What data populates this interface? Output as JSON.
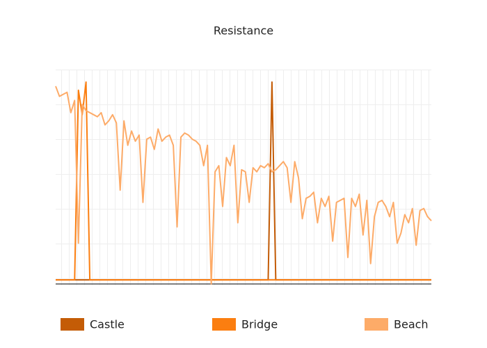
{
  "chart_data": {
    "type": "line",
    "title": "Resistance",
    "ylim": [
      0,
      100
    ],
    "series": [
      {
        "name": "Castle",
        "color": "#c45c06",
        "values": [
          2,
          2,
          2,
          2,
          2,
          2,
          2,
          2,
          2,
          2,
          2,
          2,
          2,
          2,
          2,
          2,
          2,
          2,
          2,
          2,
          2,
          2,
          2,
          2,
          2,
          2,
          2,
          2,
          2,
          2,
          2,
          2,
          2,
          2,
          2,
          2,
          2,
          2,
          2,
          2,
          2,
          2,
          2,
          2,
          2,
          2,
          2,
          2,
          2,
          2,
          2,
          2,
          2,
          2,
          2,
          2,
          2,
          99,
          2,
          2,
          2,
          2,
          2,
          2,
          2,
          2,
          2,
          2,
          2,
          2,
          2,
          2,
          2,
          2,
          2,
          2,
          2,
          2,
          2,
          2,
          2,
          2,
          2,
          2,
          2,
          2,
          2,
          2,
          2,
          2,
          2,
          2,
          2,
          2,
          2,
          2,
          2,
          2,
          2,
          2
        ]
      },
      {
        "name": "Bridge",
        "color": "#fb7e10",
        "values": [
          2,
          2,
          2,
          2,
          2,
          2,
          95,
          83,
          99,
          2,
          2,
          2,
          2,
          2,
          2,
          2,
          2,
          2,
          2,
          2,
          2,
          2,
          2,
          2,
          2,
          2,
          2,
          2,
          2,
          2,
          2,
          2,
          2,
          2,
          2,
          2,
          2,
          2,
          2,
          2,
          2,
          2,
          2,
          2,
          2,
          2,
          2,
          2,
          2,
          2,
          2,
          2,
          2,
          2,
          2,
          2,
          2,
          2,
          2,
          2,
          2,
          2,
          2,
          2,
          2,
          2,
          2,
          2,
          2,
          2,
          2,
          2,
          2,
          2,
          2,
          2,
          2,
          2,
          2,
          2,
          2,
          2,
          2,
          2,
          2,
          2,
          2,
          2,
          2,
          2,
          2,
          2,
          2,
          2,
          2,
          2,
          2,
          2,
          2,
          2
        ]
      },
      {
        "name": "Beach",
        "color": "#fdab68",
        "values": [
          97,
          92,
          93,
          94,
          84,
          90,
          20,
          88,
          85,
          84,
          83,
          82,
          84,
          78,
          80,
          83,
          79,
          46,
          80,
          68,
          75,
          70,
          73,
          40,
          71,
          72,
          66,
          76,
          70,
          72,
          73,
          68,
          28,
          72,
          74,
          73,
          71,
          70,
          68,
          58,
          68,
          0,
          55,
          58,
          38,
          62,
          58,
          68,
          30,
          56,
          55,
          40,
          57,
          55,
          58,
          57,
          59,
          55,
          56,
          58,
          60,
          57,
          40,
          60,
          52,
          32,
          42,
          43,
          45,
          30,
          42,
          38,
          43,
          21,
          40,
          41,
          42,
          13,
          42,
          38,
          44,
          24,
          41,
          10,
          33,
          40,
          41,
          38,
          33,
          40,
          20,
          25,
          34,
          30,
          37,
          19,
          36,
          37,
          33,
          31
        ]
      }
    ]
  }
}
